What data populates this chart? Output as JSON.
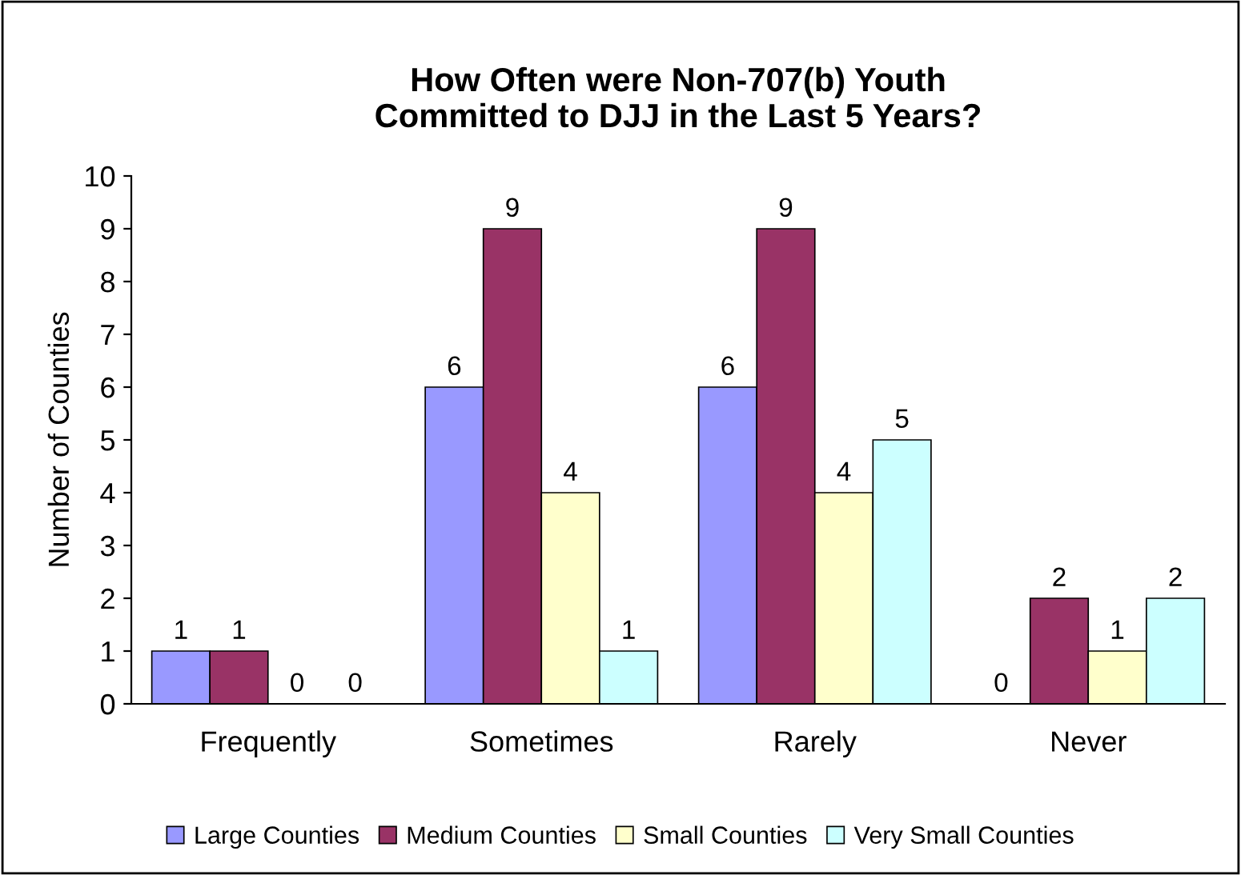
{
  "chart_data": {
    "type": "bar",
    "title": "How Often were Non-707(b) Youth\nCommitted to DJJ in the Last 5 Years?",
    "ylabel": "Number of Counties",
    "categories": [
      "Frequently",
      "Sometimes",
      "Rarely",
      "Never"
    ],
    "series": [
      {
        "name": "Large Counties",
        "color": "#9999ff",
        "values": [
          1,
          6,
          6,
          0
        ]
      },
      {
        "name": "Medium Counties",
        "color": "#993366",
        "values": [
          1,
          9,
          9,
          2
        ]
      },
      {
        "name": "Small Counties",
        "color": "#ffffcc",
        "values": [
          0,
          4,
          4,
          1
        ]
      },
      {
        "name": "Very Small Counties",
        "color": "#ccffff",
        "values": [
          0,
          1,
          5,
          2
        ]
      }
    ],
    "ylim": [
      0,
      10
    ],
    "yticks": [
      0,
      1,
      2,
      3,
      4,
      5,
      6,
      7,
      8,
      9,
      10
    ],
    "data_labels": true,
    "legend": "bottom",
    "grid": false
  }
}
